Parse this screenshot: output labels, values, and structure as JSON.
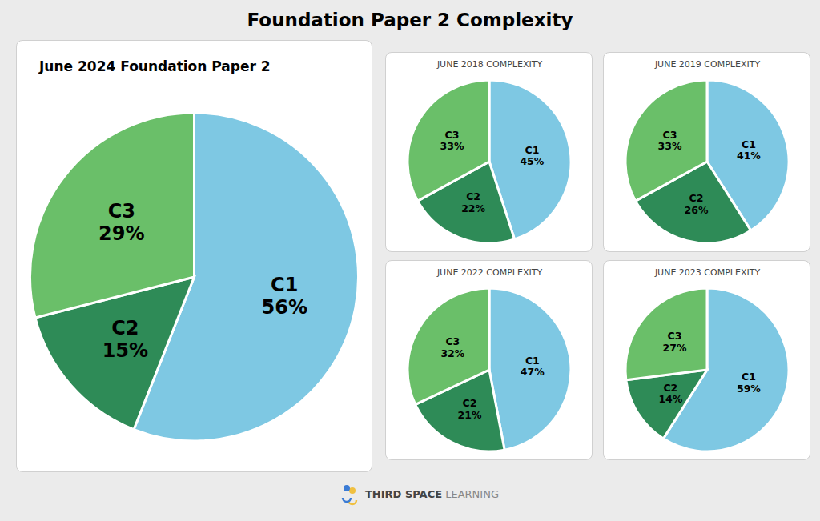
{
  "title": "Foundation Paper 2 Complexity",
  "chart_data": [
    {
      "type": "pie",
      "title": "June 2024 Foundation Paper 2",
      "categories": [
        "C1",
        "C2",
        "C3"
      ],
      "values": [
        56,
        15,
        29
      ],
      "value_labels": [
        "56%",
        "15%",
        "29%"
      ],
      "colors": [
        "#7ec8e3",
        "#2e8b57",
        "#6abf69"
      ],
      "data_labels": true
    },
    {
      "type": "pie",
      "title": "JUNE 2018 COMPLEXITY",
      "categories": [
        "C1",
        "C2",
        "C3"
      ],
      "values": [
        45,
        22,
        33
      ],
      "value_labels": [
        "45%",
        "22%",
        "33%"
      ],
      "colors": [
        "#7ec8e3",
        "#2e8b57",
        "#6abf69"
      ],
      "data_labels": true
    },
    {
      "type": "pie",
      "title": "JUNE 2019 COMPLEXITY",
      "categories": [
        "C1",
        "C2",
        "C3"
      ],
      "values": [
        41,
        26,
        33
      ],
      "value_labels": [
        "41%",
        "26%",
        "33%"
      ],
      "colors": [
        "#7ec8e3",
        "#2e8b57",
        "#6abf69"
      ],
      "data_labels": true
    },
    {
      "type": "pie",
      "title": "JUNE 2022 COMPLEXITY",
      "categories": [
        "C1",
        "C2",
        "C3"
      ],
      "values": [
        47,
        21,
        32
      ],
      "value_labels": [
        "47%",
        "21%",
        "32%"
      ],
      "colors": [
        "#7ec8e3",
        "#2e8b57",
        "#6abf69"
      ],
      "data_labels": true
    },
    {
      "type": "pie",
      "title": "JUNE 2023 COMPLEXITY",
      "categories": [
        "C1",
        "C2",
        "C3"
      ],
      "values": [
        59,
        14,
        27
      ],
      "value_labels": [
        "59%",
        "14%",
        "27%"
      ],
      "colors": [
        "#7ec8e3",
        "#2e8b57",
        "#6abf69"
      ],
      "data_labels": true
    }
  ],
  "annotations": [
    "THIRD SPACE",
    " LEARNING"
  ]
}
